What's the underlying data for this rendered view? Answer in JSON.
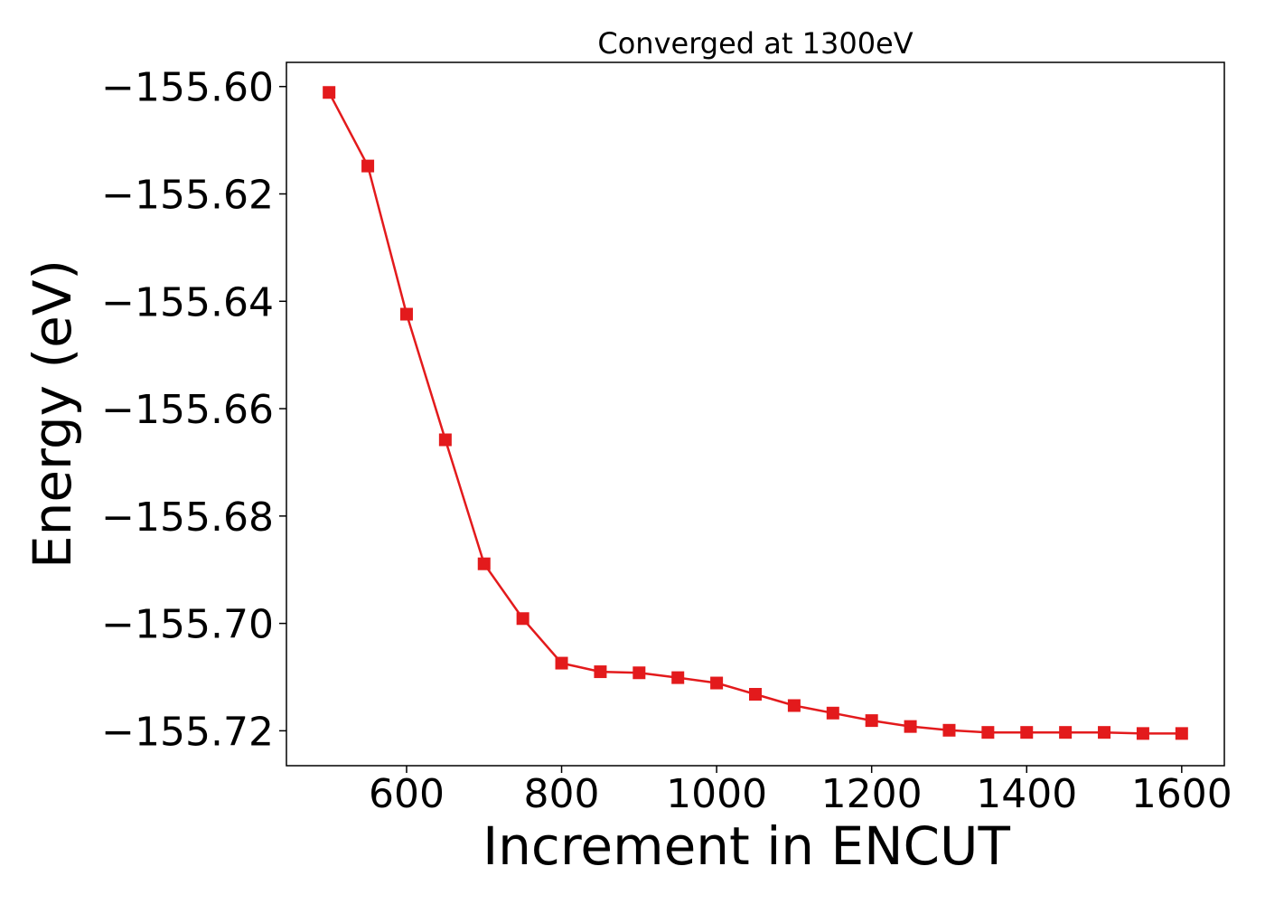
{
  "chart_data": {
    "type": "line",
    "title": "Converged at 1300eV",
    "xlabel": "Increment in ENCUT",
    "ylabel": "Energy (eV)",
    "xlim": [
      445,
      1655
    ],
    "ylim": [
      -155.7265,
      -155.5955
    ],
    "xticks": [
      600,
      800,
      1000,
      1200,
      1400,
      1600
    ],
    "yticks": [
      -155.6,
      -155.62,
      -155.64,
      -155.66,
      -155.68,
      -155.7,
      -155.72
    ],
    "ytick_labels": [
      "−155.60",
      "−155.62",
      "−155.64",
      "−155.66",
      "−155.68",
      "−155.70",
      "−155.72"
    ],
    "grid": false,
    "series": [
      {
        "color": "#e31a1c",
        "marker": "square",
        "x": [
          500,
          550,
          600,
          650,
          700,
          750,
          800,
          850,
          900,
          950,
          1000,
          1050,
          1100,
          1150,
          1200,
          1250,
          1300,
          1350,
          1400,
          1450,
          1500,
          1550,
          1600
        ],
        "y": [
          -155.6011,
          -155.6148,
          -155.6424,
          -155.6658,
          -155.6889,
          -155.6991,
          -155.7074,
          -155.709,
          -155.7092,
          -155.7101,
          -155.7111,
          -155.7132,
          -155.7153,
          -155.7167,
          -155.7181,
          -155.7192,
          -155.7199,
          -155.7203,
          -155.7203,
          -155.7203,
          -155.7203,
          -155.7205,
          -155.7205
        ]
      }
    ]
  }
}
